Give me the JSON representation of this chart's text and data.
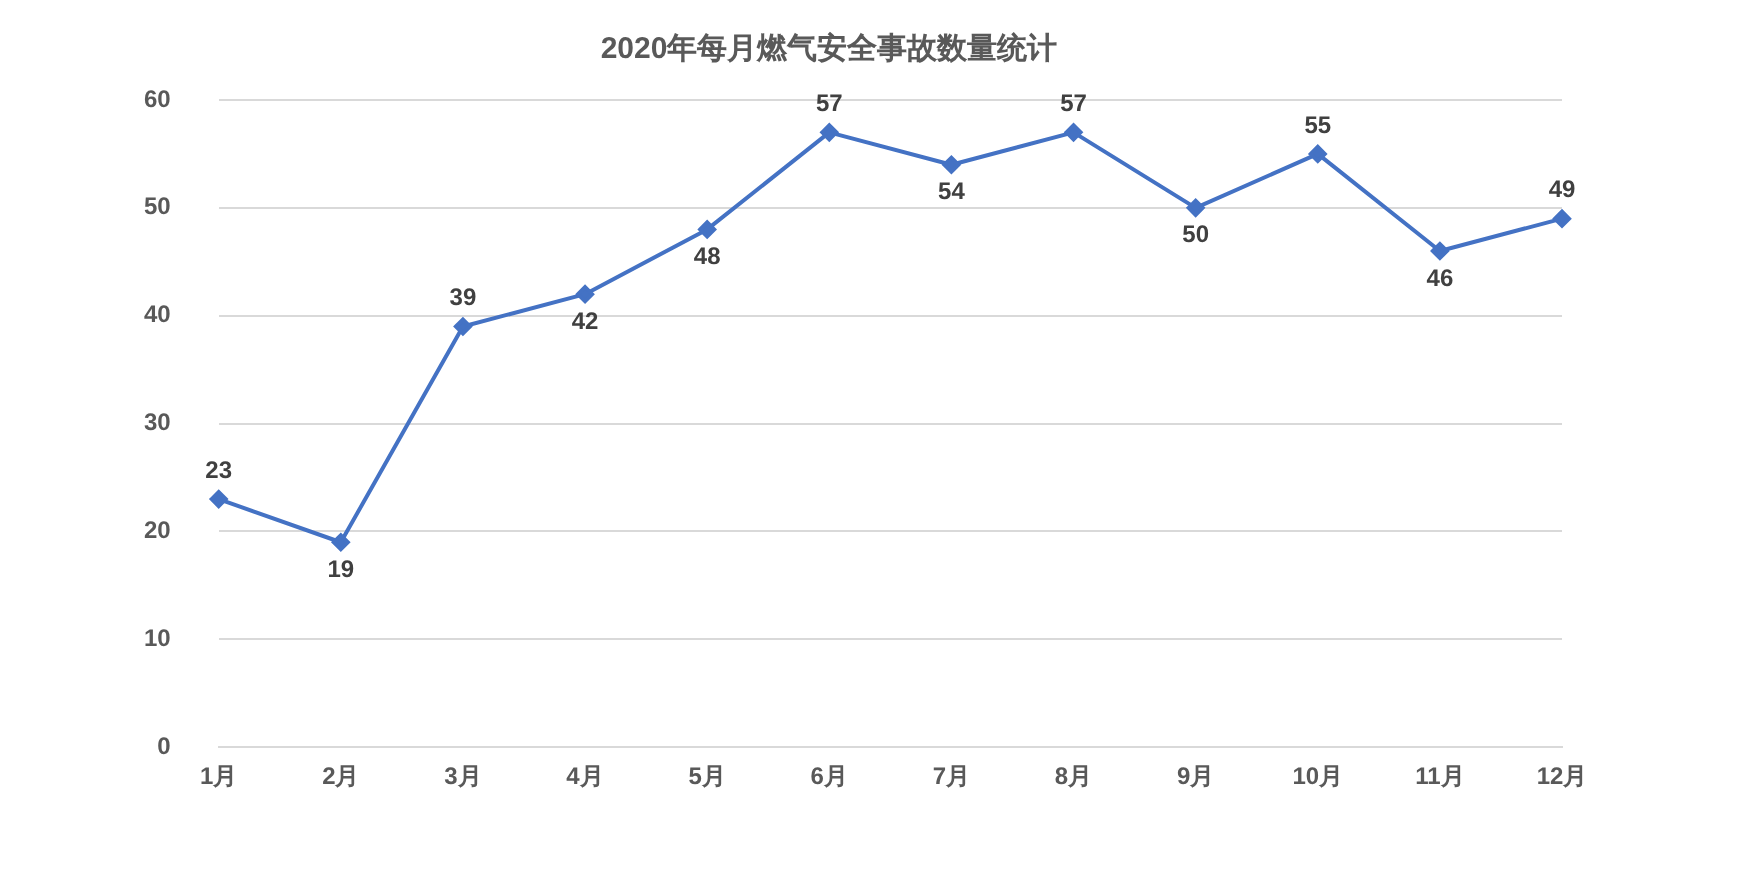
{
  "chart_data": {
    "type": "line",
    "title": "2020年每月燃气安全事故数量统计",
    "categories": [
      "1月",
      "2月",
      "3月",
      "4月",
      "5月",
      "6月",
      "7月",
      "8月",
      "9月",
      "10月",
      "11月",
      "12月"
    ],
    "series": [
      {
        "color": "#4472c4",
        "values": [
          23,
          19,
          39,
          42,
          48,
          57,
          54,
          57,
          50,
          55,
          46,
          49
        ]
      }
    ],
    "ylim": [
      0,
      60
    ],
    "yticks": [
      0,
      10,
      20,
      30,
      40,
      50,
      60
    ],
    "grid": "y",
    "legend": false,
    "marker": "diamond",
    "line_style": "solid",
    "data_labels": true
  }
}
